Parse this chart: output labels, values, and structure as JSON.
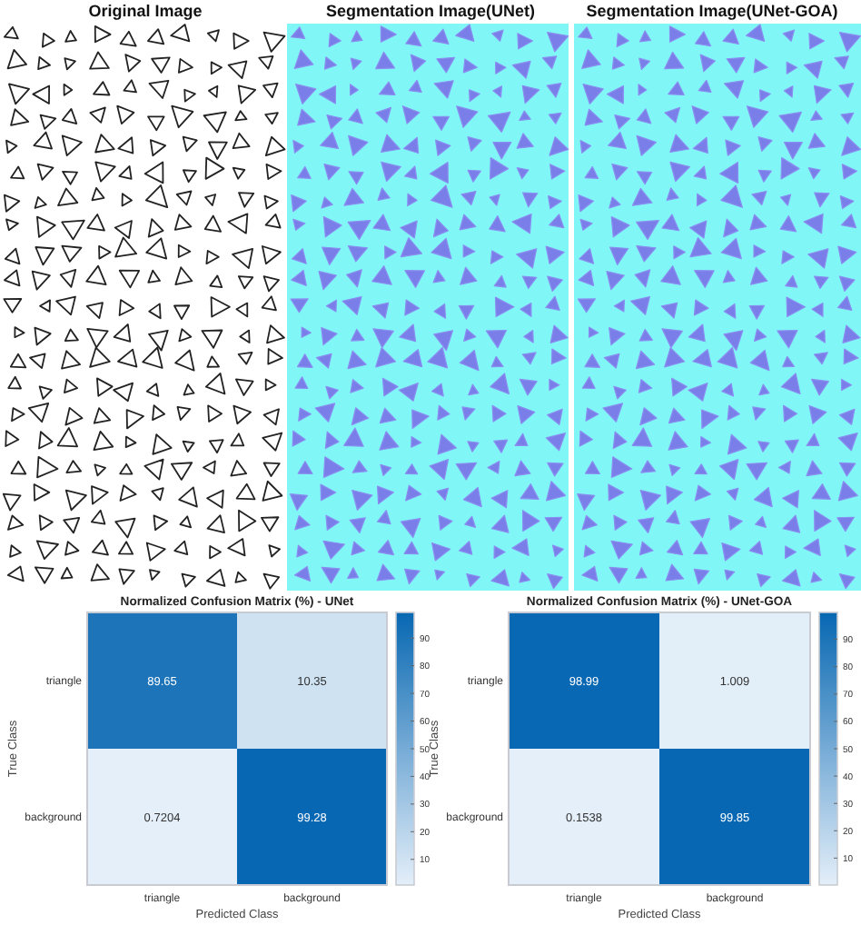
{
  "chart_data": [
    {
      "type": "other",
      "title": "Original Image"
    },
    {
      "type": "other",
      "title": "Segmentation Image(UNet)"
    },
    {
      "type": "other",
      "title": "Segmentation Image(UNet-GOA)"
    },
    {
      "type": "heatmap",
      "title": "Normalized Confusion Matrix (%) - UNet",
      "xlabel": "Predicted Class",
      "ylabel": "True Class",
      "categories": [
        "triangle",
        "background"
      ],
      "y_categories": [
        "triangle",
        "background"
      ],
      "cells": [
        [
          89.65,
          10.35
        ],
        [
          0.7204,
          99.28
        ]
      ],
      "clim": [
        0.7204,
        99.28
      ],
      "cticks": [
        10,
        20,
        30,
        40,
        50,
        60,
        70,
        80,
        90
      ],
      "data_labels": true
    },
    {
      "type": "heatmap",
      "title": "Normalized Confusion Matrix (%) - UNet-GOA",
      "xlabel": "Predicted Class",
      "ylabel": "True Class",
      "categories": [
        "triangle",
        "background"
      ],
      "y_categories": [
        "triangle",
        "background"
      ],
      "cells": [
        [
          98.99,
          1.009
        ],
        [
          0.1538,
          99.85
        ]
      ],
      "clim": [
        0.1538,
        99.85
      ],
      "cticks": [
        10,
        20,
        30,
        40,
        50,
        60,
        70,
        80,
        90
      ],
      "data_labels": true
    }
  ]
}
